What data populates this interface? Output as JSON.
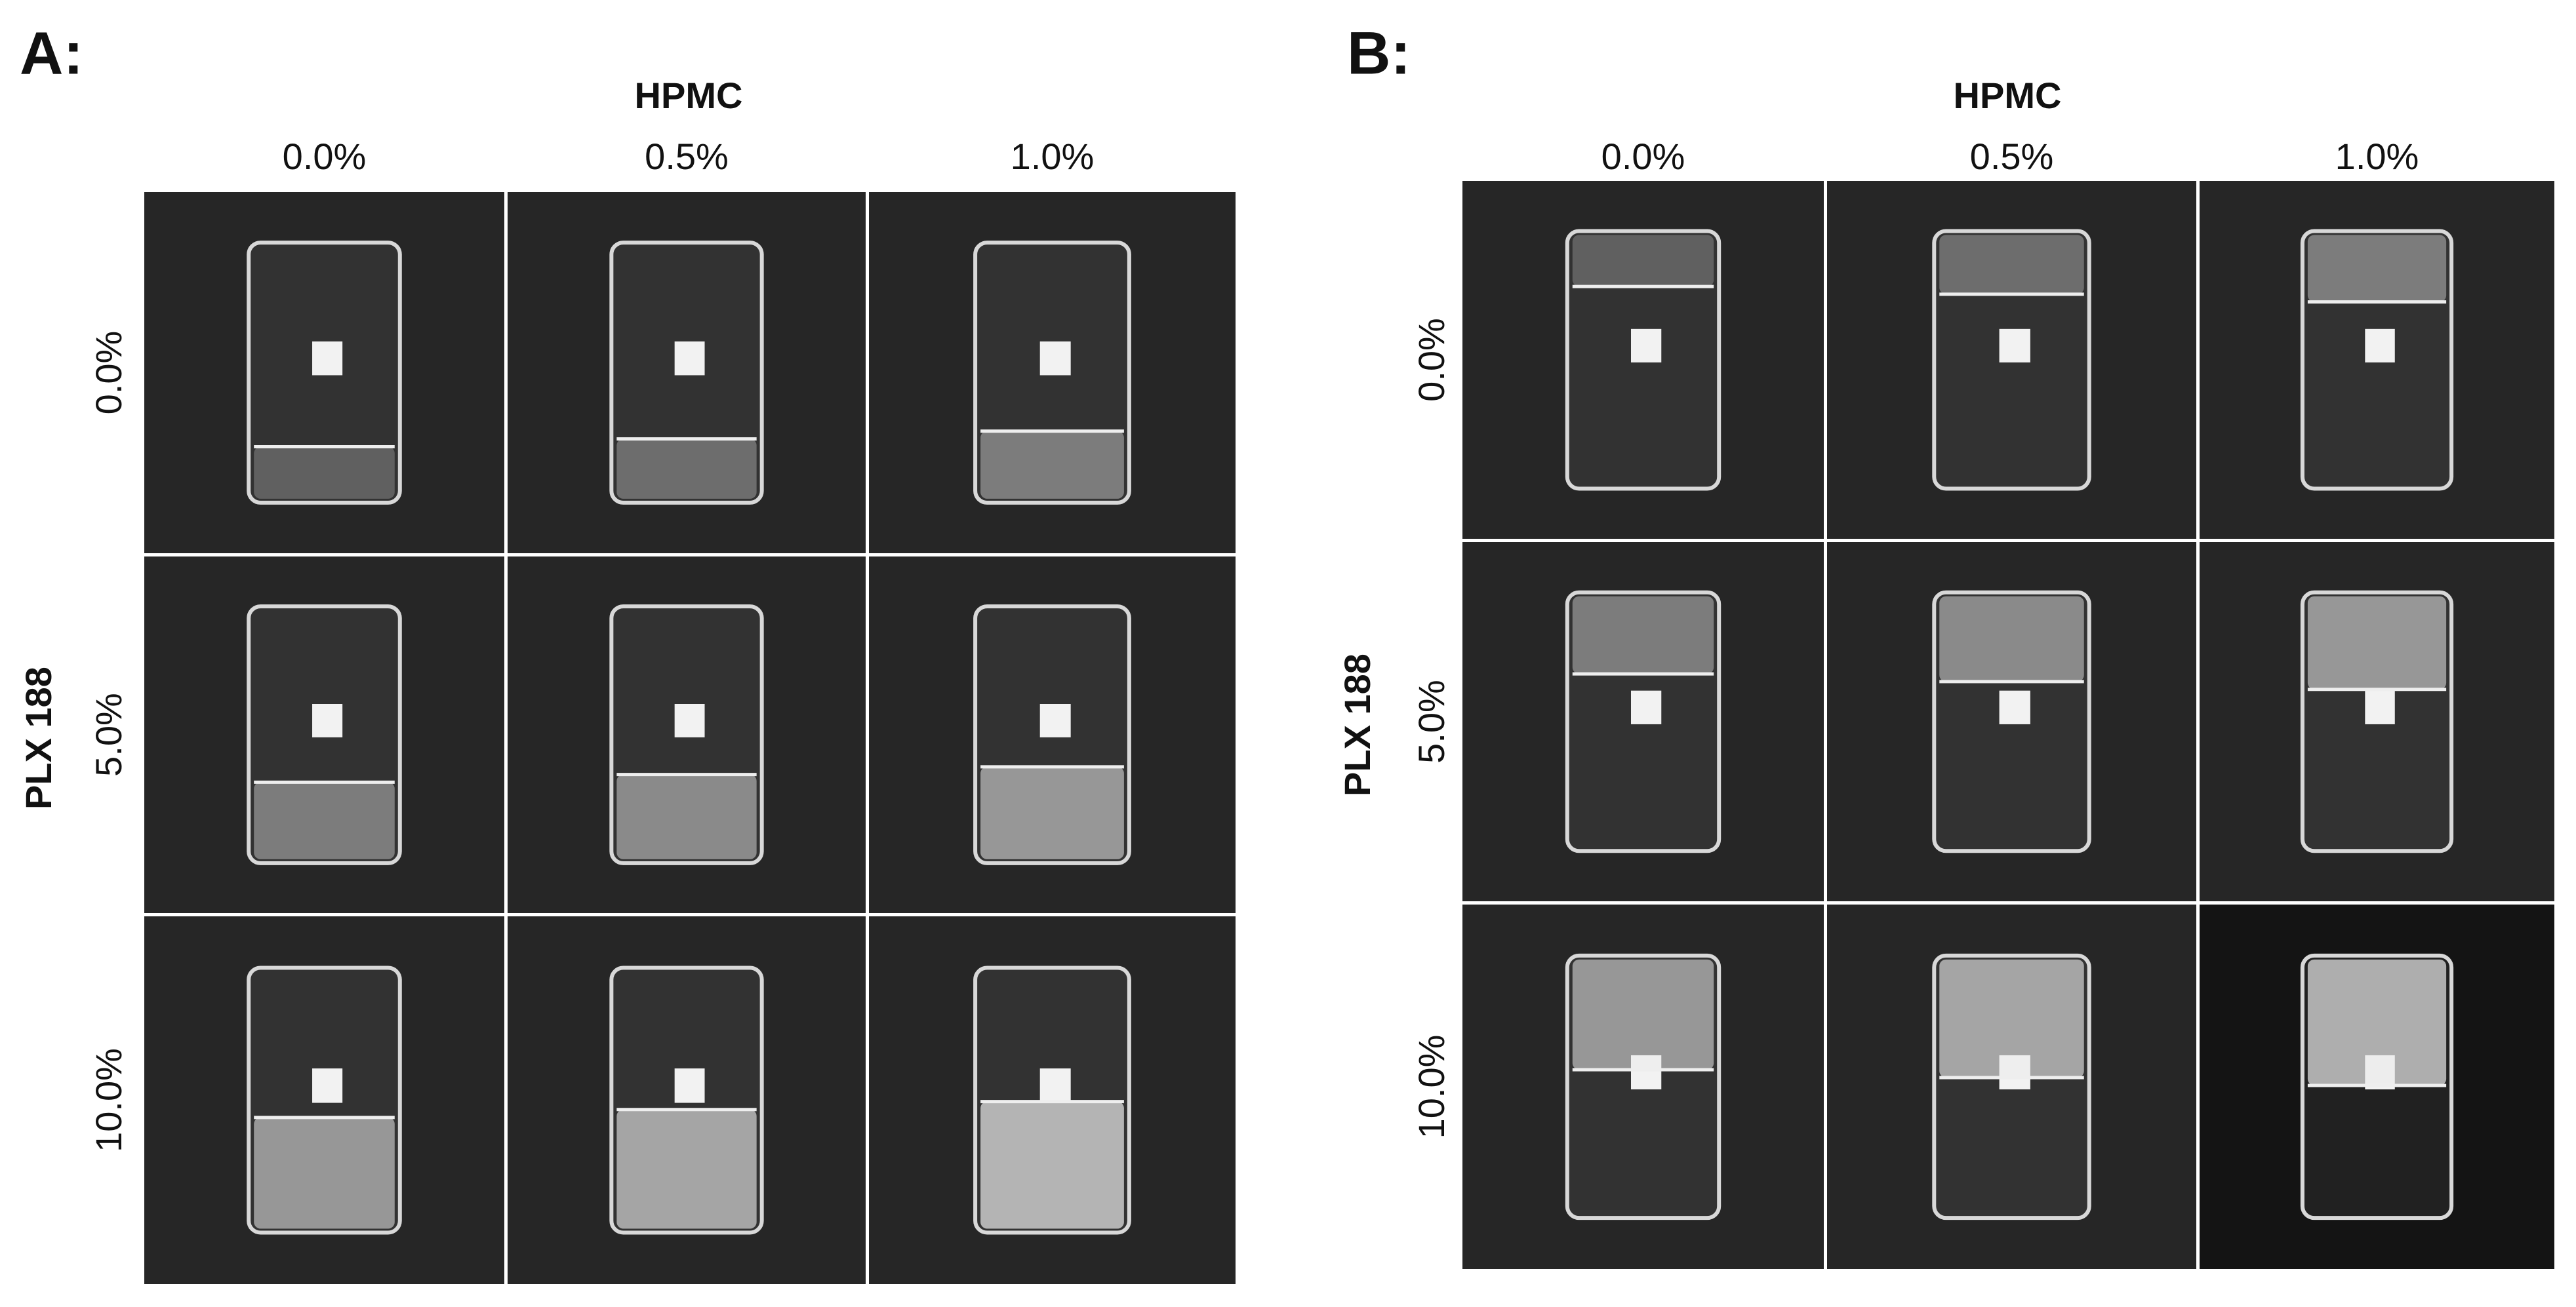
{
  "panels": [
    {
      "label": "A:",
      "column_title": "HPMC",
      "columns": [
        "0.0%",
        "0.5%",
        "1.0%"
      ],
      "row_title": "PLX 188",
      "rows": [
        "0.0%",
        "5.0%",
        "10.0%"
      ]
    },
    {
      "label": "B:",
      "column_title": "HPMC",
      "columns": [
        "0.0%",
        "0.5%",
        "1.0%"
      ],
      "row_title": "PLX 188",
      "rows": [
        "0.0%",
        "5.0%",
        "10.0%"
      ]
    }
  ]
}
